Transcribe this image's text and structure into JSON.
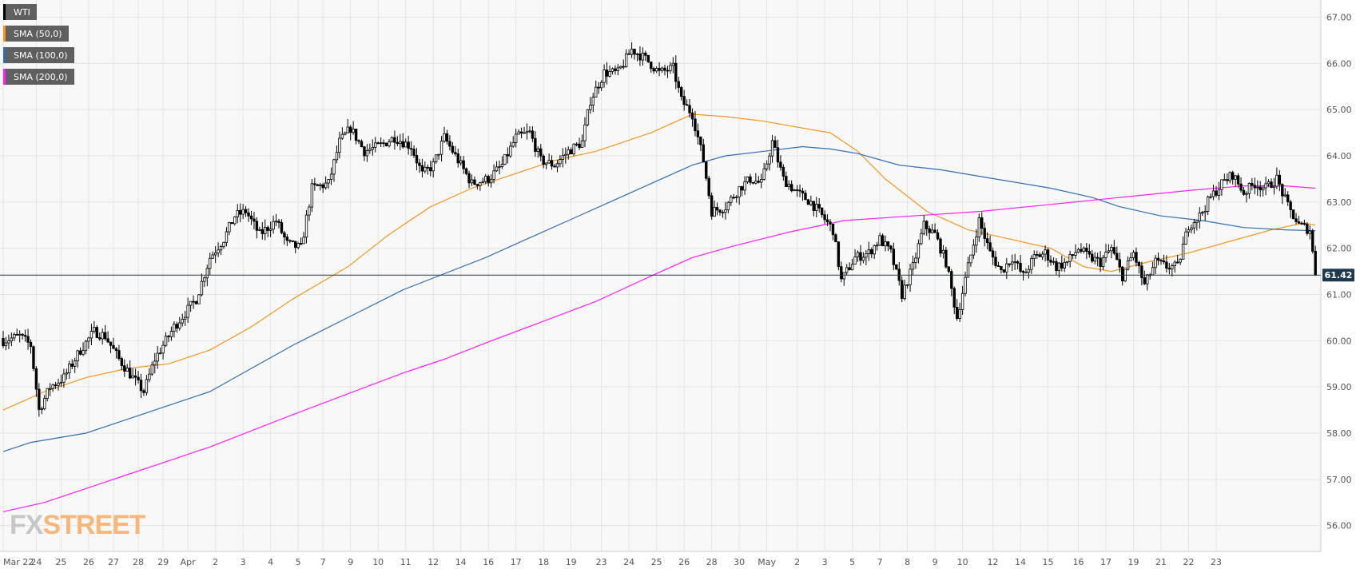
{
  "chart_data": {
    "type": "candlestick",
    "title": "",
    "ylim": [
      55.7,
      67.2
    ],
    "y_ticks": [
      "67.00",
      "66.00",
      "65.00",
      "64.00",
      "63.00",
      "62.00",
      "61.00",
      "60.00",
      "59.00",
      "58.00",
      "57.00",
      "56.00"
    ],
    "x_ticks": [
      {
        "label": "Mar 22",
        "i": 0
      },
      {
        "label": "24",
        "i": 12
      },
      {
        "label": "25",
        "i": 21
      },
      {
        "label": "26",
        "i": 31
      },
      {
        "label": "27",
        "i": 40
      },
      {
        "label": "28",
        "i": 49
      },
      {
        "label": "29",
        "i": 58
      },
      {
        "label": "Apr",
        "i": 67
      },
      {
        "label": "2",
        "i": 77
      },
      {
        "label": "3",
        "i": 87
      },
      {
        "label": "4",
        "i": 97
      },
      {
        "label": "5",
        "i": 107
      },
      {
        "label": "7",
        "i": 116
      },
      {
        "label": "9",
        "i": 126
      },
      {
        "label": "10",
        "i": 136
      },
      {
        "label": "11",
        "i": 146
      },
      {
        "label": "12",
        "i": 156
      },
      {
        "label": "14",
        "i": 166
      },
      {
        "label": "16",
        "i": 176
      },
      {
        "label": "17",
        "i": 186
      },
      {
        "label": "18",
        "i": 196
      },
      {
        "label": "19",
        "i": 206
      },
      {
        "label": "23",
        "i": 217
      },
      {
        "label": "24",
        "i": 227
      },
      {
        "label": "25",
        "i": 237
      },
      {
        "label": "26",
        "i": 247
      },
      {
        "label": "28",
        "i": 257
      },
      {
        "label": "30",
        "i": 267
      },
      {
        "label": "May",
        "i": 277
      },
      {
        "label": "2",
        "i": 288
      },
      {
        "label": "3",
        "i": 298
      },
      {
        "label": "5",
        "i": 308
      },
      {
        "label": "7",
        "i": 318
      },
      {
        "label": "8",
        "i": 328
      },
      {
        "label": "9",
        "i": 338
      },
      {
        "label": "10",
        "i": 348
      },
      {
        "label": "12",
        "i": 359
      },
      {
        "label": "14",
        "i": 369
      },
      {
        "label": "15",
        "i": 379
      },
      {
        "label": "16",
        "i": 390
      },
      {
        "label": "17",
        "i": 400
      },
      {
        "label": "19",
        "i": 410
      },
      {
        "label": "21",
        "i": 420
      },
      {
        "label": "22",
        "i": 430
      },
      {
        "label": "23",
        "i": 440
      }
    ],
    "last_price": "61.42",
    "keypoints": [
      {
        "i": 0,
        "c": 60.0
      },
      {
        "i": 6,
        "c": 60.1
      },
      {
        "i": 10,
        "c": 59.9
      },
      {
        "i": 13,
        "c": 58.5
      },
      {
        "i": 17,
        "c": 59.0
      },
      {
        "i": 22,
        "c": 59.2
      },
      {
        "i": 28,
        "c": 59.8
      },
      {
        "i": 33,
        "c": 60.2
      },
      {
        "i": 37,
        "c": 60.1
      },
      {
        "i": 42,
        "c": 59.6
      },
      {
        "i": 47,
        "c": 59.2
      },
      {
        "i": 51,
        "c": 58.9
      },
      {
        "i": 55,
        "c": 59.6
      },
      {
        "i": 62,
        "c": 60.3
      },
      {
        "i": 70,
        "c": 60.9
      },
      {
        "i": 75,
        "c": 61.8
      },
      {
        "i": 80,
        "c": 62.2
      },
      {
        "i": 84,
        "c": 62.7
      },
      {
        "i": 88,
        "c": 62.8
      },
      {
        "i": 93,
        "c": 62.3
      },
      {
        "i": 99,
        "c": 62.6
      },
      {
        "i": 103,
        "c": 62.1
      },
      {
        "i": 108,
        "c": 62.0
      },
      {
        "i": 112,
        "c": 63.3
      },
      {
        "i": 118,
        "c": 63.4
      },
      {
        "i": 122,
        "c": 64.3
      },
      {
        "i": 126,
        "c": 64.6
      },
      {
        "i": 131,
        "c": 64.1
      },
      {
        "i": 136,
        "c": 64.2
      },
      {
        "i": 142,
        "c": 64.4
      },
      {
        "i": 148,
        "c": 64.2
      },
      {
        "i": 152,
        "c": 63.6
      },
      {
        "i": 156,
        "c": 63.8
      },
      {
        "i": 160,
        "c": 64.4
      },
      {
        "i": 165,
        "c": 63.9
      },
      {
        "i": 170,
        "c": 63.4
      },
      {
        "i": 176,
        "c": 63.5
      },
      {
        "i": 181,
        "c": 63.8
      },
      {
        "i": 186,
        "c": 64.4
      },
      {
        "i": 191,
        "c": 64.5
      },
      {
        "i": 195,
        "c": 63.9
      },
      {
        "i": 200,
        "c": 63.8
      },
      {
        "i": 205,
        "c": 64.1
      },
      {
        "i": 210,
        "c": 64.3
      },
      {
        "i": 213,
        "c": 65.2
      },
      {
        "i": 218,
        "c": 65.8
      },
      {
        "i": 223,
        "c": 65.8
      },
      {
        "i": 228,
        "c": 66.3
      },
      {
        "i": 233,
        "c": 66.1
      },
      {
        "i": 238,
        "c": 65.8
      },
      {
        "i": 243,
        "c": 65.9
      },
      {
        "i": 246,
        "c": 65.2
      },
      {
        "i": 250,
        "c": 64.9
      },
      {
        "i": 254,
        "c": 63.9
      },
      {
        "i": 257,
        "c": 62.8
      },
      {
        "i": 262,
        "c": 62.9
      },
      {
        "i": 267,
        "c": 63.3
      },
      {
        "i": 271,
        "c": 63.5
      },
      {
        "i": 275,
        "c": 63.4
      },
      {
        "i": 279,
        "c": 64.3
      },
      {
        "i": 283,
        "c": 63.5
      },
      {
        "i": 288,
        "c": 63.2
      },
      {
        "i": 293,
        "c": 63.0
      },
      {
        "i": 297,
        "c": 62.7
      },
      {
        "i": 301,
        "c": 62.4
      },
      {
        "i": 304,
        "c": 61.3
      },
      {
        "i": 309,
        "c": 61.8
      },
      {
        "i": 314,
        "c": 61.9
      },
      {
        "i": 318,
        "c": 62.2
      },
      {
        "i": 322,
        "c": 61.9
      },
      {
        "i": 326,
        "c": 61.0
      },
      {
        "i": 330,
        "c": 61.6
      },
      {
        "i": 334,
        "c": 62.5
      },
      {
        "i": 338,
        "c": 62.3
      },
      {
        "i": 342,
        "c": 61.7
      },
      {
        "i": 346,
        "c": 60.5
      },
      {
        "i": 350,
        "c": 61.6
      },
      {
        "i": 354,
        "c": 62.6
      },
      {
        "i": 358,
        "c": 61.9
      },
      {
        "i": 362,
        "c": 61.5
      },
      {
        "i": 366,
        "c": 61.8
      },
      {
        "i": 370,
        "c": 61.4
      },
      {
        "i": 374,
        "c": 61.8
      },
      {
        "i": 378,
        "c": 61.9
      },
      {
        "i": 382,
        "c": 61.6
      },
      {
        "i": 386,
        "c": 61.7
      },
      {
        "i": 390,
        "c": 62.0
      },
      {
        "i": 394,
        "c": 61.8
      },
      {
        "i": 398,
        "c": 61.7
      },
      {
        "i": 402,
        "c": 62.0
      },
      {
        "i": 406,
        "c": 61.4
      },
      {
        "i": 410,
        "c": 61.9
      },
      {
        "i": 414,
        "c": 61.2
      },
      {
        "i": 418,
        "c": 61.7
      },
      {
        "i": 422,
        "c": 61.6
      },
      {
        "i": 426,
        "c": 61.6
      },
      {
        "i": 430,
        "c": 62.5
      },
      {
        "i": 434,
        "c": 62.7
      },
      {
        "i": 438,
        "c": 63.1
      },
      {
        "i": 442,
        "c": 63.4
      },
      {
        "i": 446,
        "c": 63.6
      },
      {
        "i": 450,
        "c": 63.2
      },
      {
        "i": 454,
        "c": 63.4
      },
      {
        "i": 458,
        "c": 63.3
      },
      {
        "i": 462,
        "c": 63.5
      },
      {
        "i": 466,
        "c": 62.9
      },
      {
        "i": 470,
        "c": 62.5
      },
      {
        "i": 474,
        "c": 62.4
      },
      {
        "i": 476,
        "c": 61.42
      }
    ],
    "series": [
      {
        "name": "SMA (50,0)",
        "color": "#f7941d",
        "points": [
          {
            "i": 0,
            "v": 58.5
          },
          {
            "i": 15,
            "v": 58.9
          },
          {
            "i": 30,
            "v": 59.2
          },
          {
            "i": 45,
            "v": 59.4
          },
          {
            "i": 60,
            "v": 59.5
          },
          {
            "i": 75,
            "v": 59.8
          },
          {
            "i": 90,
            "v": 60.3
          },
          {
            "i": 105,
            "v": 60.9
          },
          {
            "i": 125,
            "v": 61.6
          },
          {
            "i": 140,
            "v": 62.3
          },
          {
            "i": 155,
            "v": 62.9
          },
          {
            "i": 170,
            "v": 63.3
          },
          {
            "i": 185,
            "v": 63.6
          },
          {
            "i": 200,
            "v": 63.9
          },
          {
            "i": 215,
            "v": 64.1
          },
          {
            "i": 235,
            "v": 64.5
          },
          {
            "i": 250,
            "v": 64.9
          },
          {
            "i": 262,
            "v": 64.85
          },
          {
            "i": 276,
            "v": 64.75
          },
          {
            "i": 290,
            "v": 64.6
          },
          {
            "i": 300,
            "v": 64.5
          },
          {
            "i": 310,
            "v": 64.1
          },
          {
            "i": 320,
            "v": 63.5
          },
          {
            "i": 335,
            "v": 62.8
          },
          {
            "i": 350,
            "v": 62.4
          },
          {
            "i": 365,
            "v": 62.2
          },
          {
            "i": 380,
            "v": 62.0
          },
          {
            "i": 392,
            "v": 61.6
          },
          {
            "i": 402,
            "v": 61.5
          },
          {
            "i": 415,
            "v": 61.7
          },
          {
            "i": 430,
            "v": 61.9
          },
          {
            "i": 445,
            "v": 62.15
          },
          {
            "i": 460,
            "v": 62.4
          },
          {
            "i": 472,
            "v": 62.55
          },
          {
            "i": 476,
            "v": 62.5
          }
        ]
      },
      {
        "name": "SMA (100,0)",
        "color": "#2f6db5",
        "points": [
          {
            "i": 0,
            "v": 57.6
          },
          {
            "i": 10,
            "v": 57.8
          },
          {
            "i": 30,
            "v": 58.0
          },
          {
            "i": 45,
            "v": 58.3
          },
          {
            "i": 60,
            "v": 58.6
          },
          {
            "i": 75,
            "v": 58.9
          },
          {
            "i": 90,
            "v": 59.4
          },
          {
            "i": 105,
            "v": 59.9
          },
          {
            "i": 125,
            "v": 60.5
          },
          {
            "i": 145,
            "v": 61.1
          },
          {
            "i": 160,
            "v": 61.45
          },
          {
            "i": 175,
            "v": 61.8
          },
          {
            "i": 190,
            "v": 62.2
          },
          {
            "i": 205,
            "v": 62.6
          },
          {
            "i": 220,
            "v": 63.0
          },
          {
            "i": 235,
            "v": 63.4
          },
          {
            "i": 250,
            "v": 63.8
          },
          {
            "i": 262,
            "v": 64.0
          },
          {
            "i": 276,
            "v": 64.1
          },
          {
            "i": 290,
            "v": 64.2
          },
          {
            "i": 300,
            "v": 64.15
          },
          {
            "i": 310,
            "v": 64.05
          },
          {
            "i": 325,
            "v": 63.8
          },
          {
            "i": 340,
            "v": 63.7
          },
          {
            "i": 360,
            "v": 63.5
          },
          {
            "i": 380,
            "v": 63.3
          },
          {
            "i": 395,
            "v": 63.1
          },
          {
            "i": 405,
            "v": 62.9
          },
          {
            "i": 420,
            "v": 62.7
          },
          {
            "i": 435,
            "v": 62.6
          },
          {
            "i": 450,
            "v": 62.45
          },
          {
            "i": 465,
            "v": 62.4
          },
          {
            "i": 476,
            "v": 62.38
          }
        ]
      },
      {
        "name": "SMA (200,0)",
        "color": "#ff1dff",
        "points": [
          {
            "i": 0,
            "v": 56.3
          },
          {
            "i": 15,
            "v": 56.5
          },
          {
            "i": 30,
            "v": 56.8
          },
          {
            "i": 45,
            "v": 57.1
          },
          {
            "i": 60,
            "v": 57.4
          },
          {
            "i": 75,
            "v": 57.7
          },
          {
            "i": 90,
            "v": 58.05
          },
          {
            "i": 105,
            "v": 58.4
          },
          {
            "i": 125,
            "v": 58.85
          },
          {
            "i": 145,
            "v": 59.3
          },
          {
            "i": 160,
            "v": 59.6
          },
          {
            "i": 175,
            "v": 59.95
          },
          {
            "i": 195,
            "v": 60.4
          },
          {
            "i": 215,
            "v": 60.85
          },
          {
            "i": 235,
            "v": 61.4
          },
          {
            "i": 250,
            "v": 61.8
          },
          {
            "i": 265,
            "v": 62.05
          },
          {
            "i": 285,
            "v": 62.35
          },
          {
            "i": 305,
            "v": 62.6
          },
          {
            "i": 330,
            "v": 62.7
          },
          {
            "i": 355,
            "v": 62.8
          },
          {
            "i": 380,
            "v": 62.95
          },
          {
            "i": 405,
            "v": 63.1
          },
          {
            "i": 430,
            "v": 63.25
          },
          {
            "i": 450,
            "v": 63.35
          },
          {
            "i": 465,
            "v": 63.35
          },
          {
            "i": 476,
            "v": 63.3
          }
        ]
      }
    ],
    "legend": [
      {
        "label": "WTI",
        "color": "#000000"
      },
      {
        "label": "SMA (50,0)",
        "color": "#f7941d"
      },
      {
        "label": "SMA (100,0)",
        "color": "#2f6db5"
      },
      {
        "label": "SMA (200,0)",
        "color": "#ff1dff"
      }
    ]
  },
  "watermark": {
    "part1": "FX",
    "part2": "STREET"
  }
}
